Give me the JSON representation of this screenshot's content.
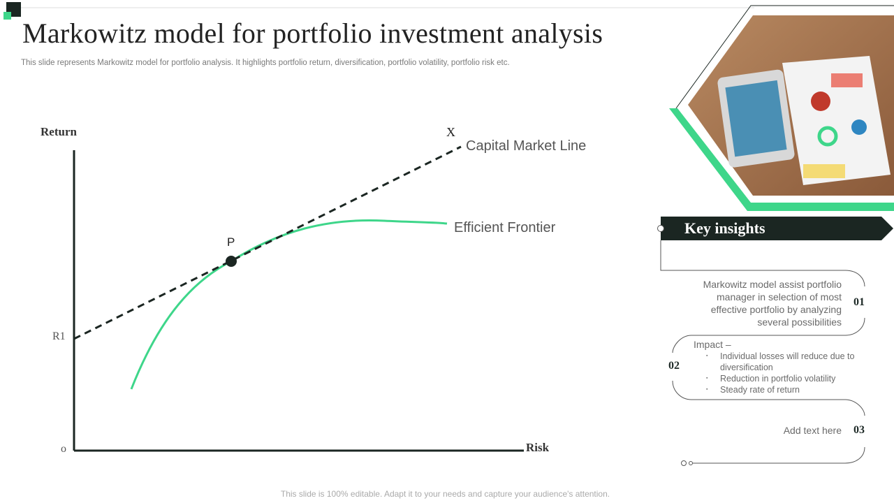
{
  "header": {
    "title": "Markowitz model for portfolio investment analysis",
    "subtitle": "This slide represents Markowitz model for portfolio analysis. It highlights portfolio return, diversification, portfolio volatility, portfolio risk etc."
  },
  "diagram": {
    "y_axis_label": "Return",
    "x_axis_label": "Risk",
    "origin_label": "o",
    "r1_label": "R1",
    "point_label": "P",
    "line_end_label": "X",
    "cml_label": "Capital Market Line",
    "frontier_label": "Efficient Frontier"
  },
  "insights": {
    "title": "Key insights",
    "items": [
      {
        "number": "01",
        "text": "Markowitz model assist portfolio manager in selection of most effective portfolio by analyzing several possibilities"
      },
      {
        "number": "02",
        "heading": "Impact –",
        "bullets": [
          "Individual  losses will reduce due to diversification",
          "Reduction  in portfolio volatility",
          "Steady rate of return"
        ]
      },
      {
        "number": "03",
        "text": "Add text here"
      }
    ]
  },
  "footer": "This slide is 100% editable. Adapt it to your needs and capture your audience's attention.",
  "colors": {
    "accent": "#3ed68a",
    "dark": "#1b2622",
    "text": "#6a6a6a"
  }
}
